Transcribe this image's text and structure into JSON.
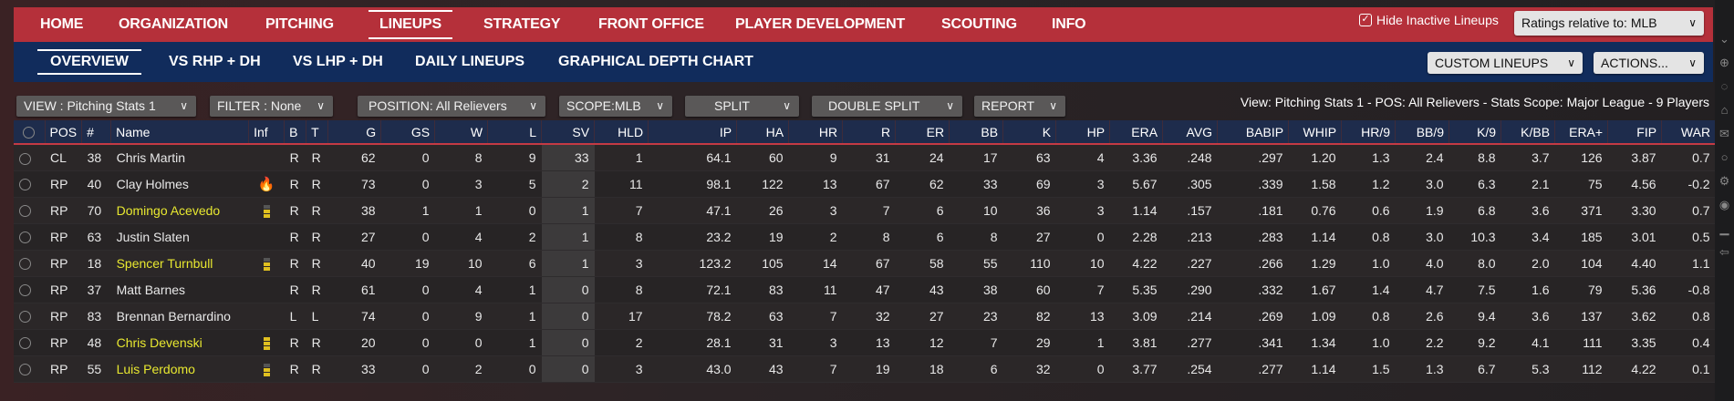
{
  "top_nav": [
    {
      "label": "HOME"
    },
    {
      "label": "ORGANIZATION"
    },
    {
      "label": "PITCHING"
    },
    {
      "label": "LINEUPS",
      "active": true
    },
    {
      "label": "STRATEGY"
    },
    {
      "label": "FRONT OFFICE"
    },
    {
      "label": "PLAYER DEVELOPMENT"
    },
    {
      "label": "SCOUTING"
    },
    {
      "label": "INFO"
    }
  ],
  "hide_inactive": {
    "label": "Hide Inactive Lineups",
    "checked": true
  },
  "ratings_dropdown": "Ratings relative to: MLB",
  "sub_nav": [
    {
      "label": "OVERVIEW",
      "active": true
    },
    {
      "label": "VS RHP + DH"
    },
    {
      "label": "VS LHP + DH"
    },
    {
      "label": "DAILY LINEUPS"
    },
    {
      "label": "GRAPHICAL DEPTH CHART"
    }
  ],
  "custom_lineups": "CUSTOM LINEUPS",
  "actions": "ACTIONS...",
  "toolbar": {
    "view": "VIEW : Pitching Stats 1",
    "filter": "FILTER : None",
    "position": "POSITION: All Relievers",
    "scope": "SCOPE:MLB",
    "split": "SPLIT",
    "double_split": "DOUBLE SPLIT",
    "report": "REPORT"
  },
  "view_info": "View: Pitching Stats 1 - POS: All Relievers - Stats Scope: Major League - 9 Players",
  "columns": [
    "POS",
    "#",
    "Name",
    "Inf",
    "B",
    "T",
    "G",
    "GS",
    "W",
    "L",
    "SV",
    "HLD",
    "IP",
    "HA",
    "HR",
    "R",
    "ER",
    "BB",
    "K",
    "HP",
    "ERA",
    "AVG",
    "BABIP",
    "WHIP",
    "HR/9",
    "BB/9",
    "K/9",
    "K/BB",
    "ERA+",
    "FIP",
    "WAR"
  ],
  "rows": [
    {
      "highlight": false,
      "inf": "",
      "cells": [
        "CL",
        "38",
        "Chris Martin",
        "",
        "R",
        "R",
        "62",
        "0",
        "8",
        "9",
        "33",
        "1",
        "64.1",
        "60",
        "9",
        "31",
        "24",
        "17",
        "63",
        "4",
        "3.36",
        ".248",
        ".297",
        "1.20",
        "1.3",
        "2.4",
        "8.8",
        "3.7",
        "126",
        "3.87",
        "0.7"
      ]
    },
    {
      "highlight": false,
      "inf": "fire",
      "cells": [
        "RP",
        "40",
        "Clay Holmes",
        "",
        "R",
        "R",
        "73",
        "0",
        "3",
        "5",
        "2",
        "11",
        "98.1",
        "122",
        "13",
        "67",
        "62",
        "33",
        "69",
        "3",
        "5.67",
        ".305",
        ".339",
        "1.58",
        "1.2",
        "3.0",
        "6.3",
        "2.1",
        "75",
        "4.56",
        "-0.2"
      ]
    },
    {
      "highlight": true,
      "inf": "bars2",
      "cells": [
        "RP",
        "70",
        "Domingo Acevedo",
        "",
        "R",
        "R",
        "38",
        "1",
        "1",
        "0",
        "1",
        "7",
        "47.1",
        "26",
        "3",
        "7",
        "6",
        "10",
        "36",
        "3",
        "1.14",
        ".157",
        ".181",
        "0.76",
        "0.6",
        "1.9",
        "6.8",
        "3.6",
        "371",
        "3.30",
        "0.7"
      ]
    },
    {
      "highlight": false,
      "inf": "",
      "cells": [
        "RP",
        "63",
        "Justin Slaten",
        "",
        "R",
        "R",
        "27",
        "0",
        "4",
        "2",
        "1",
        "8",
        "23.2",
        "19",
        "2",
        "8",
        "6",
        "8",
        "27",
        "0",
        "2.28",
        ".213",
        ".283",
        "1.14",
        "0.8",
        "3.0",
        "10.3",
        "3.4",
        "185",
        "3.01",
        "0.5"
      ]
    },
    {
      "highlight": true,
      "inf": "bars2",
      "cells": [
        "RP",
        "18",
        "Spencer Turnbull",
        "",
        "R",
        "R",
        "40",
        "19",
        "10",
        "6",
        "1",
        "3",
        "123.2",
        "105",
        "14",
        "67",
        "58",
        "55",
        "110",
        "10",
        "4.22",
        ".227",
        ".266",
        "1.29",
        "1.0",
        "4.0",
        "8.0",
        "2.0",
        "104",
        "4.40",
        "1.1"
      ]
    },
    {
      "highlight": false,
      "inf": "",
      "cells": [
        "RP",
        "37",
        "Matt Barnes",
        "",
        "R",
        "R",
        "61",
        "0",
        "4",
        "1",
        "0",
        "8",
        "72.1",
        "83",
        "11",
        "47",
        "43",
        "38",
        "60",
        "7",
        "5.35",
        ".290",
        ".332",
        "1.67",
        "1.4",
        "4.7",
        "7.5",
        "1.6",
        "79",
        "5.36",
        "-0.8"
      ]
    },
    {
      "highlight": false,
      "inf": "",
      "cells": [
        "RP",
        "83",
        "Brennan Bernardino",
        "",
        "L",
        "L",
        "74",
        "0",
        "9",
        "1",
        "0",
        "17",
        "78.2",
        "63",
        "7",
        "32",
        "27",
        "23",
        "82",
        "13",
        "3.09",
        ".214",
        ".269",
        "1.09",
        "0.8",
        "2.6",
        "9.4",
        "3.6",
        "137",
        "3.62",
        "0.8"
      ]
    },
    {
      "highlight": true,
      "inf": "bars3",
      "cells": [
        "RP",
        "48",
        "Chris Devenski",
        "",
        "R",
        "R",
        "20",
        "0",
        "0",
        "1",
        "0",
        "2",
        "28.1",
        "31",
        "3",
        "13",
        "12",
        "7",
        "29",
        "1",
        "3.81",
        ".277",
        ".341",
        "1.34",
        "1.0",
        "2.2",
        "9.2",
        "4.1",
        "111",
        "3.35",
        "0.4"
      ]
    },
    {
      "highlight": true,
      "inf": "bars2",
      "cells": [
        "RP",
        "55",
        "Luis Perdomo",
        "",
        "R",
        "R",
        "33",
        "0",
        "2",
        "0",
        "0",
        "3",
        "43.0",
        "43",
        "7",
        "19",
        "18",
        "6",
        "32",
        "0",
        "3.77",
        ".254",
        ".277",
        "1.14",
        "1.5",
        "1.3",
        "6.7",
        "5.3",
        "112",
        "4.22",
        "0.1"
      ]
    }
  ],
  "colors": {
    "top_nav": "#b5303a",
    "sub_nav": "#112c5c",
    "highlight_name": "#e8e830",
    "header": "#1e2c4c"
  }
}
